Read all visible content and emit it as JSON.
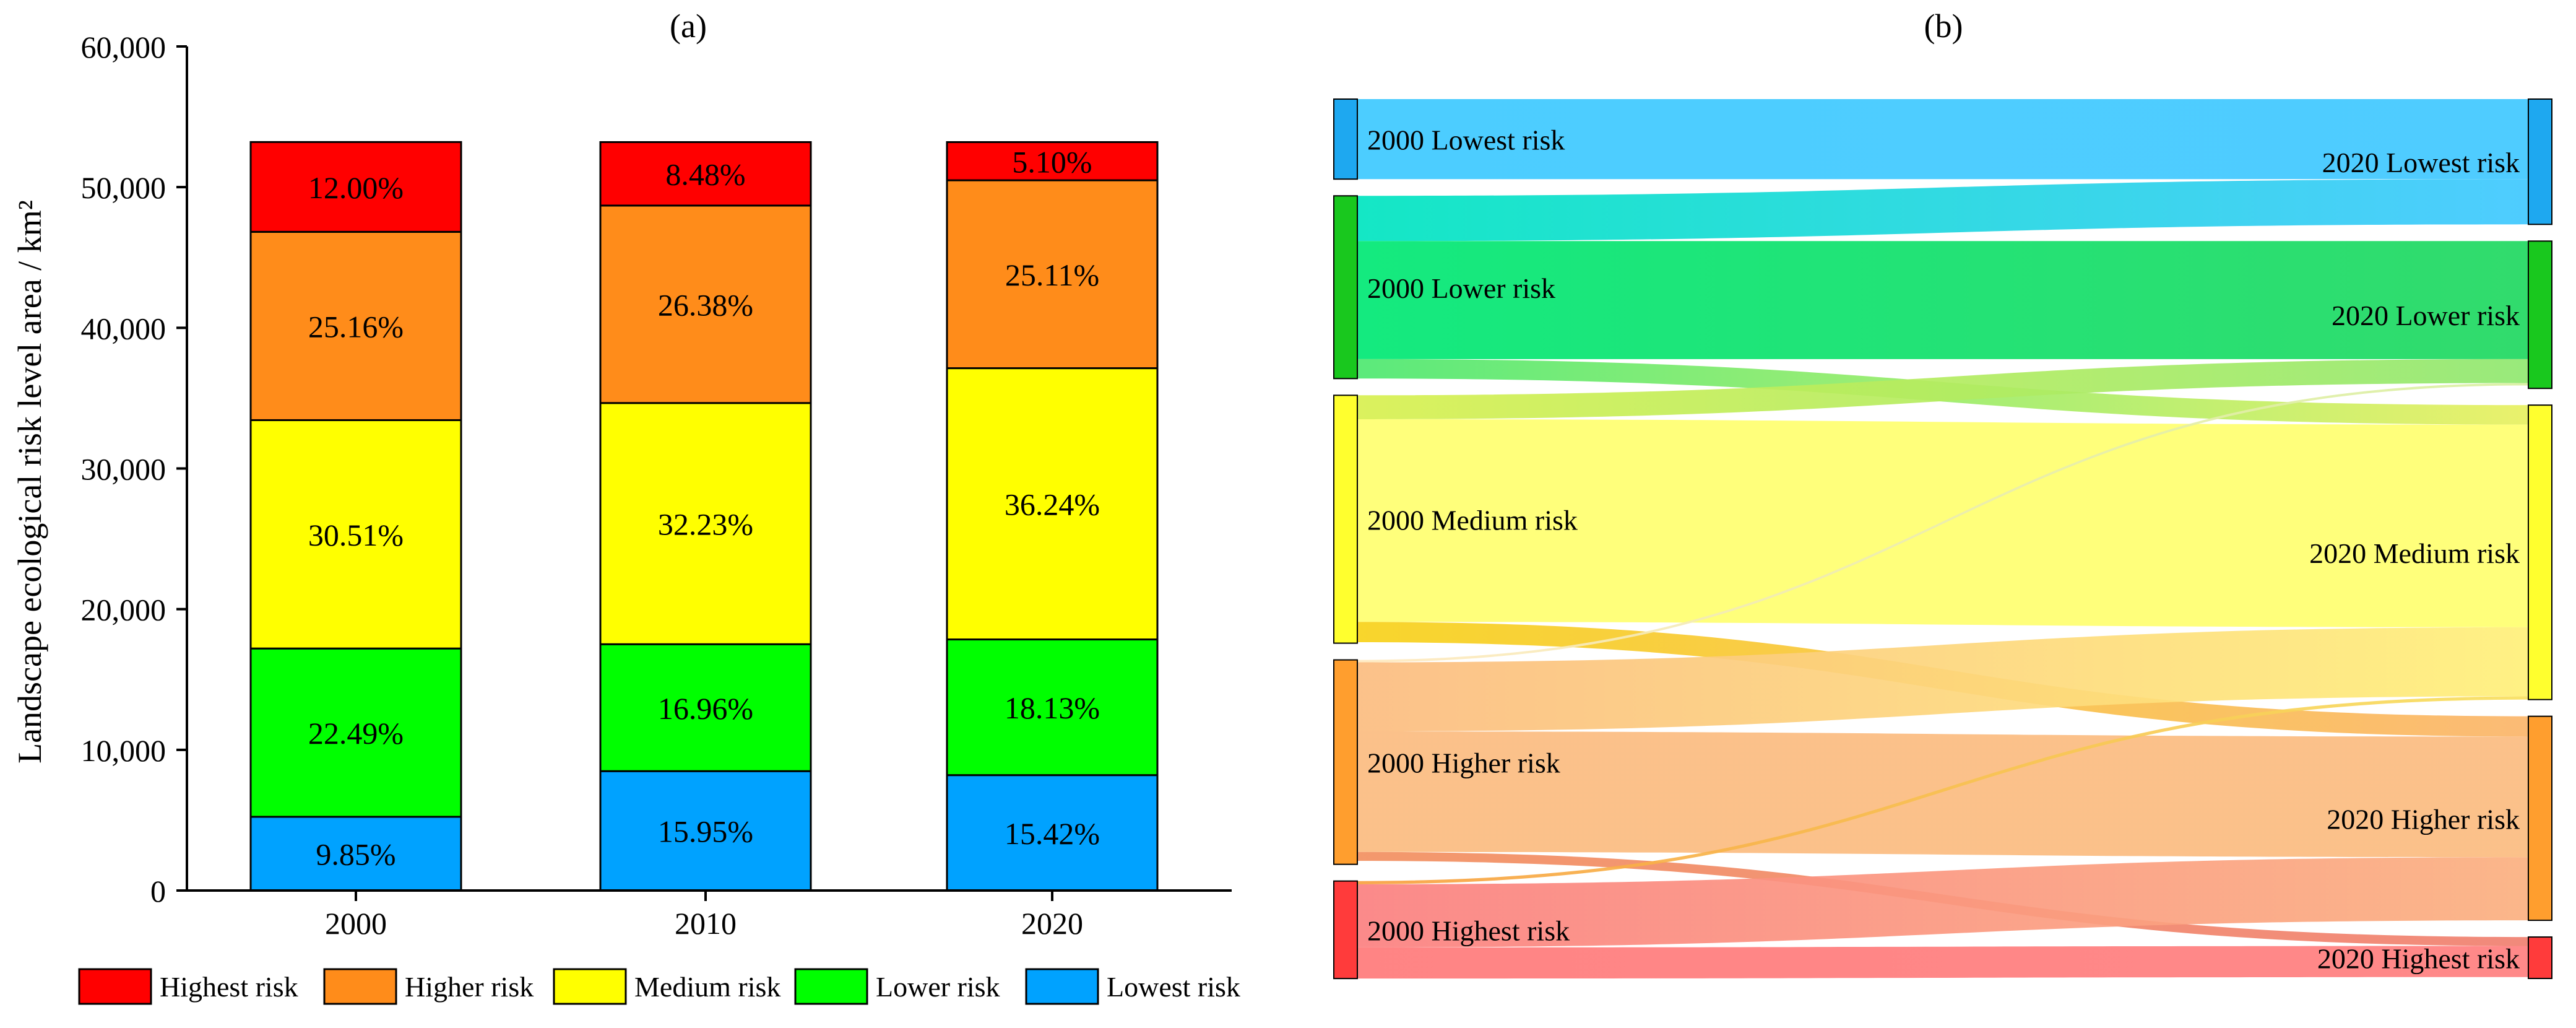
{
  "chart_data": [
    {
      "panel_label": "(a)",
      "type": "bar",
      "stacked": true,
      "categories": [
        "2000",
        "2010",
        "2020"
      ],
      "ylabel": "Landscape ecological risk level area / km²",
      "xlabel": "",
      "ylim": [
        0,
        60000
      ],
      "yticks": [
        0,
        10000,
        20000,
        30000,
        40000,
        50000,
        60000
      ],
      "ytick_labels": [
        "0",
        "10,000",
        "20,000",
        "30,000",
        "40,000",
        "50,000",
        "60,000"
      ],
      "total_area": 53200,
      "series": [
        {
          "name": "Lowest risk",
          "color": "#00A2FF",
          "values": [
            9.85,
            15.95,
            15.42
          ],
          "labels": [
            "9.85%",
            "15.95%",
            "15.42%"
          ]
        },
        {
          "name": "Lower risk",
          "color": "#00FF00",
          "values": [
            22.49,
            16.96,
            18.13
          ],
          "labels": [
            "22.49%",
            "16.96%",
            "18.13%"
          ]
        },
        {
          "name": "Medium risk",
          "color": "#FFFF00",
          "values": [
            30.51,
            32.23,
            36.24
          ],
          "labels": [
            "30.51%",
            "32.23%",
            "36.24%"
          ]
        },
        {
          "name": "Higher risk",
          "color": "#FF8C1A",
          "values": [
            25.16,
            26.38,
            25.11
          ],
          "labels": [
            "25.16%",
            "26.38%",
            "25.11%"
          ]
        },
        {
          "name": "Highest risk",
          "color": "#FF0000",
          "values": [
            12.0,
            8.48,
            5.1
          ],
          "labels": [
            "12.00%",
            "8.48%",
            "5.10%"
          ]
        }
      ],
      "legend": {
        "position": "bottom",
        "order": [
          "Highest risk",
          "Higher risk",
          "Medium risk",
          "Lower risk",
          "Lowest risk"
        ]
      }
    },
    {
      "panel_label": "(b)",
      "type": "sankey",
      "nodes_left": [
        {
          "name": "2000 Lowest risk",
          "color": "#1EA8F0",
          "value": 9.85
        },
        {
          "name": "2000 Lower risk",
          "color": "#19C81E",
          "value": 22.49
        },
        {
          "name": "2000 Medium risk",
          "color": "#FFFF2E",
          "value": 30.51
        },
        {
          "name": "2000 Higher risk",
          "color": "#FF9E2E",
          "value": 25.16
        },
        {
          "name": "2000 Highest risk",
          "color": "#FF3B3B",
          "value": 12.0
        }
      ],
      "nodes_right": [
        {
          "name": "2020 Lowest risk",
          "color": "#1EA8F0",
          "value": 15.42
        },
        {
          "name": "2020 Lower risk",
          "color": "#19C81E",
          "value": 18.13
        },
        {
          "name": "2020 Medium risk",
          "color": "#FFFF2E",
          "value": 36.24
        },
        {
          "name": "2020 Higher risk",
          "color": "#FF9E2E",
          "value": 25.11
        },
        {
          "name": "2020 Highest risk",
          "color": "#FF3B3B",
          "value": 5.1
        }
      ],
      "links": [
        {
          "source": 0,
          "target": 0,
          "value": 9.85,
          "from_color": "#3DC9FF",
          "to_color": "#40C8FF"
        },
        {
          "source": 1,
          "target": 0,
          "value": 5.57,
          "from_color": "#00E5C0",
          "to_color": "#40C8FF"
        },
        {
          "source": 1,
          "target": 1,
          "value": 14.52,
          "from_color": "#00E874",
          "to_color": "#20D860"
        },
        {
          "source": 1,
          "target": 2,
          "value": 2.4,
          "from_color": "#4DE870",
          "to_color": "#E8F060"
        },
        {
          "source": 2,
          "target": 1,
          "value": 2.95,
          "from_color": "#D8F050",
          "to_color": "#90E870"
        },
        {
          "source": 2,
          "target": 2,
          "value": 24.94,
          "from_color": "#FFFF70",
          "to_color": "#FFFF70"
        },
        {
          "source": 2,
          "target": 3,
          "value": 2.5,
          "from_color": "#F7D21A",
          "to_color": "#FBB56A"
        },
        {
          "source": 3,
          "target": 1,
          "value": 0.3,
          "from_color": "#FFE9C0",
          "to_color": "#D8F0A0"
        },
        {
          "source": 3,
          "target": 2,
          "value": 8.5,
          "from_color": "#FBBC80",
          "to_color": "#FFF07A"
        },
        {
          "source": 3,
          "target": 3,
          "value": 14.84,
          "from_color": "#FBBC80",
          "to_color": "#FBBC80"
        },
        {
          "source": 3,
          "target": 4,
          "value": 1.1,
          "from_color": "#F29060",
          "to_color": "#F08070"
        },
        {
          "source": 4,
          "target": 2,
          "value": 0.4,
          "from_color": "#F8A040",
          "to_color": "#F8E060"
        },
        {
          "source": 4,
          "target": 3,
          "value": 7.77,
          "from_color": "#FB8080",
          "to_color": "#FBB080"
        },
        {
          "source": 4,
          "target": 4,
          "value": 3.83,
          "from_color": "#FF7A7A",
          "to_color": "#FF7F7F"
        }
      ]
    }
  ]
}
